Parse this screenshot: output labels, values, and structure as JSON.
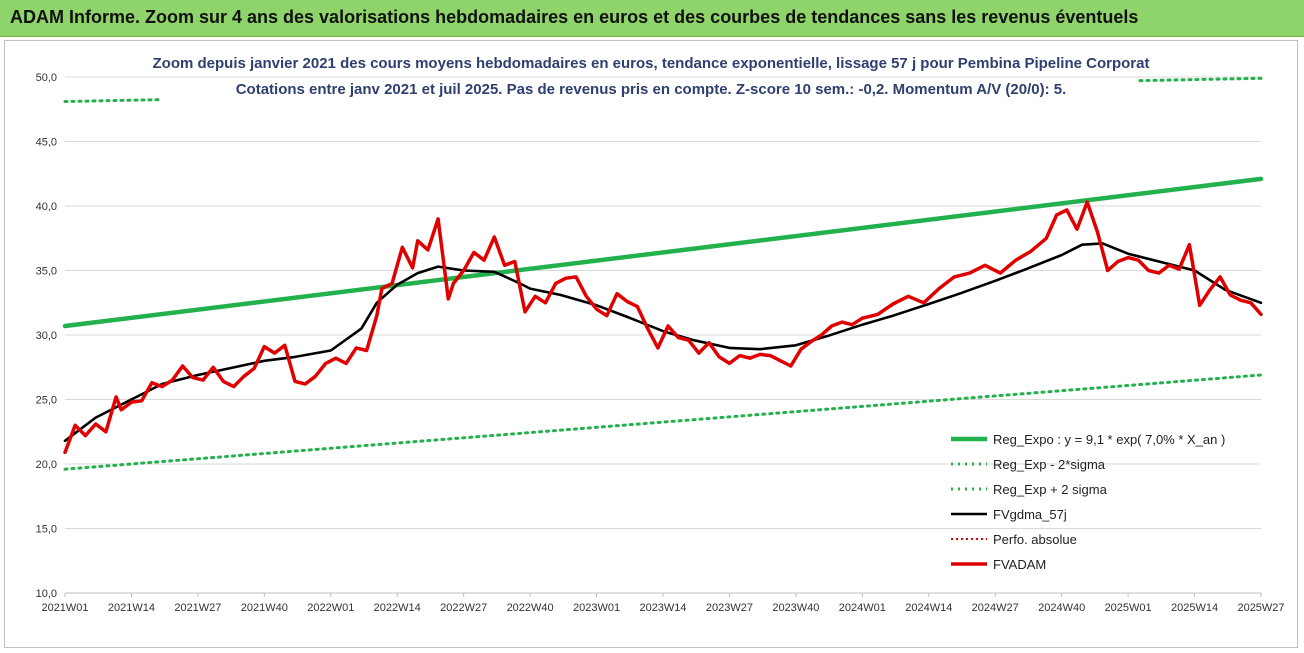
{
  "banner": {
    "text": "ADAM Informe. Zoom sur 4 ans des valorisations hebdomadaires en euros et des courbes de tendances sans les revenus éventuels"
  },
  "chart_data": {
    "type": "line",
    "title": "Zoom depuis janvier 2021 des cours moyens hebdomadaires en euros, tendance exponentielle, lissage 57 j pour Pembina Pipeline Corporat",
    "subtitle": "Cotations entre janv 2021 et juil 2025. Pas de revenus pris en compte. Z-score 10 sem.: -0,2. Momentum A/V (20/0): 5.",
    "xlabel": "",
    "ylabel": "",
    "ylim": [
      10,
      50
    ],
    "yticks": [
      "10,0",
      "15,0",
      "20,0",
      "25,0",
      "30,0",
      "35,0",
      "40,0",
      "45,0",
      "50,0"
    ],
    "x_tick_labels": [
      "2021W01",
      "2021W14",
      "2021W27",
      "2021W40",
      "2022W01",
      "2022W14",
      "2022W27",
      "2022W40",
      "2023W01",
      "2023W14",
      "2023W27",
      "2023W40",
      "2024W01",
      "2024W14",
      "2024W27",
      "2024W40",
      "2025W01",
      "2025W14",
      "2025W27"
    ],
    "legend_position": "bottom-right",
    "colors": {
      "trend": "#22b14c",
      "band": "#22b14c",
      "mva": "#000000",
      "perf": "#e00000",
      "price": "#e00000"
    },
    "series": [
      {
        "name": "Reg_Expo : y = 9,1 * exp( 7,0% *  X_an )",
        "key": "trend",
        "style": "solid",
        "x": [
          "2021W01",
          "2025W27"
        ],
        "y": [
          30.7,
          42.1
        ]
      },
      {
        "name": "Reg_Exp - 2*sigma",
        "key": "lower",
        "style": "dotted",
        "x": [
          "2021W01",
          "2025W27"
        ],
        "y": [
          19.6,
          26.9
        ]
      },
      {
        "name": "Reg_Exp + 2 sigma",
        "key": "upper",
        "style": "dotted",
        "x": [
          "2021W01",
          "2025W27"
        ],
        "y": [
          48.1,
          49.9
        ]
      },
      {
        "name": "FVgdma_57j",
        "key": "mva",
        "style": "solid",
        "x": [
          "2021W01",
          "2021W07",
          "2021W14",
          "2021W20",
          "2021W27",
          "2021W33",
          "2021W40",
          "2021W46",
          "2022W01",
          "2022W07",
          "2022W10",
          "2022W14",
          "2022W18",
          "2022W22",
          "2022W27",
          "2022W33",
          "2022W38",
          "2022W40",
          "2022W46",
          "2023W01",
          "2023W07",
          "2023W14",
          "2023W20",
          "2023W27",
          "2023W33",
          "2023W40",
          "2023W46",
          "2024W01",
          "2024W07",
          "2024W14",
          "2024W20",
          "2024W27",
          "2024W33",
          "2024W40",
          "2024W44",
          "2024W48",
          "2025W01",
          "2025W07",
          "2025W14",
          "2025W20",
          "2025W27"
        ],
        "y": [
          21.8,
          23.6,
          25.0,
          26.2,
          26.9,
          27.4,
          28.0,
          28.3,
          28.8,
          30.5,
          32.5,
          33.9,
          34.8,
          35.3,
          35.0,
          34.9,
          34.0,
          33.6,
          33.1,
          32.3,
          31.4,
          30.3,
          29.6,
          29.0,
          28.9,
          29.2,
          29.9,
          30.8,
          31.5,
          32.4,
          33.2,
          34.2,
          35.1,
          36.2,
          37.0,
          37.1,
          36.3,
          35.7,
          35.0,
          33.5,
          32.5
        ]
      },
      {
        "name": "Perfo. absolue",
        "key": "perf",
        "style": "dotted",
        "x": [],
        "y": []
      },
      {
        "name": "FVADAM",
        "key": "price",
        "style": "solid",
        "x": [
          "2021W01",
          "2021W03",
          "2021W05",
          "2021W07",
          "2021W09",
          "2021W11",
          "2021W12",
          "2021W14",
          "2021W16",
          "2021W18",
          "2021W20",
          "2021W22",
          "2021W24",
          "2021W26",
          "2021W28",
          "2021W30",
          "2021W32",
          "2021W34",
          "2021W36",
          "2021W38",
          "2021W40",
          "2021W42",
          "2021W44",
          "2021W46",
          "2021W48",
          "2021W50",
          "2021W52",
          "2022W02",
          "2022W04",
          "2022W06",
          "2022W08",
          "2022W10",
          "2022W11",
          "2022W13",
          "2022W15",
          "2022W17",
          "2022W18",
          "2022W20",
          "2022W22",
          "2022W24",
          "2022W25",
          "2022W27",
          "2022W29",
          "2022W31",
          "2022W33",
          "2022W35",
          "2022W37",
          "2022W39",
          "2022W41",
          "2022W43",
          "2022W45",
          "2022W47",
          "2022W49",
          "2022W51",
          "2023W01",
          "2023W03",
          "2023W05",
          "2023W07",
          "2023W09",
          "2023W11",
          "2023W13",
          "2023W15",
          "2023W17",
          "2023W19",
          "2023W21",
          "2023W23",
          "2023W25",
          "2023W27",
          "2023W29",
          "2023W31",
          "2023W33",
          "2023W35",
          "2023W37",
          "2023W39",
          "2023W41",
          "2023W43",
          "2023W45",
          "2023W47",
          "2023W49",
          "2023W51",
          "2024W01",
          "2024W04",
          "2024W07",
          "2024W10",
          "2024W13",
          "2024W16",
          "2024W19",
          "2024W22",
          "2024W25",
          "2024W28",
          "2024W31",
          "2024W34",
          "2024W37",
          "2024W39",
          "2024W41",
          "2024W43",
          "2024W45",
          "2024W47",
          "2024W49",
          "2024W51",
          "2025W01",
          "2025W03",
          "2025W05",
          "2025W07",
          "2025W09",
          "2025W11",
          "2025W13",
          "2025W15",
          "2025W17",
          "2025W19",
          "2025W21",
          "2025W23",
          "2025W25",
          "2025W27"
        ],
        "y": [
          20.9,
          23.0,
          22.2,
          23.1,
          22.5,
          25.2,
          24.2,
          24.8,
          24.9,
          26.3,
          26.0,
          26.5,
          27.6,
          26.7,
          26.5,
          27.5,
          26.4,
          26.0,
          26.8,
          27.4,
          29.1,
          28.6,
          29.2,
          26.4,
          26.2,
          26.8,
          27.8,
          28.2,
          27.8,
          29.0,
          28.8,
          31.5,
          33.6,
          34.0,
          36.8,
          35.2,
          37.3,
          36.6,
          39.0,
          32.8,
          34.0,
          35.0,
          36.4,
          35.8,
          37.6,
          35.4,
          35.7,
          31.8,
          33.0,
          32.5,
          34.0,
          34.4,
          34.5,
          33.0,
          32.0,
          31.5,
          33.2,
          32.6,
          32.2,
          30.5,
          29.0,
          30.7,
          29.8,
          29.6,
          28.6,
          29.4,
          28.3,
          27.8,
          28.4,
          28.2,
          28.5,
          28.4,
          28.0,
          27.6,
          28.9,
          29.5,
          30.0,
          30.7,
          31.0,
          30.8,
          31.3,
          31.6,
          32.4,
          33.0,
          32.5,
          33.6,
          34.5,
          34.8,
          35.4,
          34.8,
          35.8,
          36.5,
          37.5,
          39.3,
          39.7,
          38.2,
          40.3,
          38.0,
          35.0,
          35.7,
          36.0,
          35.8,
          35.0,
          34.8,
          35.4,
          35.1,
          37.0,
          32.3,
          33.5,
          34.5,
          33.1,
          32.7,
          32.5,
          31.6
        ]
      }
    ]
  }
}
